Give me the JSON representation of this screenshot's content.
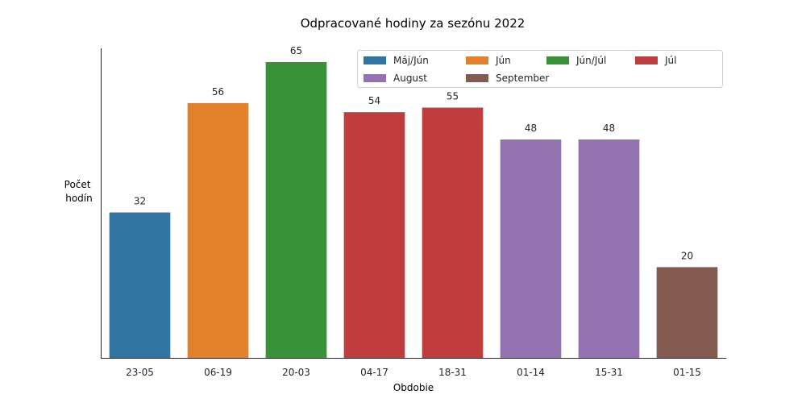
{
  "chart_data": {
    "type": "bar",
    "title": "Odpracované hodiny za sezónu 2022",
    "xlabel": "Obdobie",
    "ylabel_lines": [
      "Počet",
      "hodín"
    ],
    "categories": [
      "23-05",
      "06-19",
      "20-03",
      "04-17",
      "18-31",
      "01-14",
      "15-31",
      "01-15"
    ],
    "values": [
      32,
      56,
      65,
      54,
      55,
      48,
      48,
      20
    ],
    "bar_series": [
      "Máj/Jún",
      "Jún",
      "Jún/Júl",
      "Júl",
      "Júl",
      "August",
      "August",
      "September"
    ],
    "ylim": [
      0,
      68
    ],
    "grid": false,
    "y_ticks_shown": false,
    "legend_position": "top-right",
    "legend": [
      {
        "name": "Máj/Jún",
        "color": "#3274a1"
      },
      {
        "name": "Jún",
        "color": "#e1812c"
      },
      {
        "name": "Jún/Júl",
        "color": "#3a923a"
      },
      {
        "name": "Júl",
        "color": "#c03d3e"
      },
      {
        "name": "August",
        "color": "#9372b2"
      },
      {
        "name": "September",
        "color": "#845b53"
      }
    ]
  }
}
